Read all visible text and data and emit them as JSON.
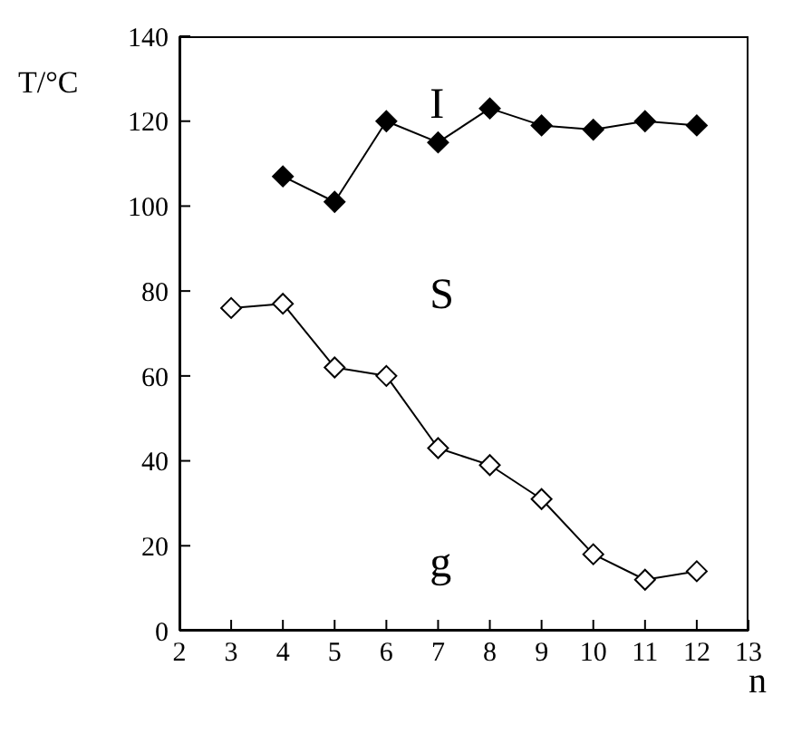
{
  "chart_data": {
    "type": "line",
    "xlabel": "n",
    "ylabel": "T/°C",
    "xlim": [
      2,
      13
    ],
    "ylim": [
      0,
      140
    ],
    "xticks": [
      2,
      3,
      4,
      5,
      6,
      7,
      8,
      9,
      10,
      11,
      12,
      13
    ],
    "yticks": [
      0,
      20,
      40,
      60,
      80,
      100,
      120,
      140
    ],
    "marker": "diamond",
    "line_style": "solid",
    "grid": false,
    "legend": false,
    "annotations": [
      "I",
      "S",
      "g"
    ],
    "series": [
      {
        "color": "#000000",
        "x": [
          4,
          5,
          6,
          7,
          8,
          9,
          10,
          11,
          12
        ],
        "values": [
          107,
          101,
          120,
          115,
          123,
          119,
          118,
          120,
          119
        ]
      },
      {
        "color": "#000000",
        "x": [
          3,
          4,
          5,
          6,
          7,
          8,
          9,
          10,
          11,
          12
        ],
        "values": [
          76,
          77,
          62,
          60,
          43,
          39,
          31,
          18,
          12,
          14
        ]
      }
    ]
  }
}
